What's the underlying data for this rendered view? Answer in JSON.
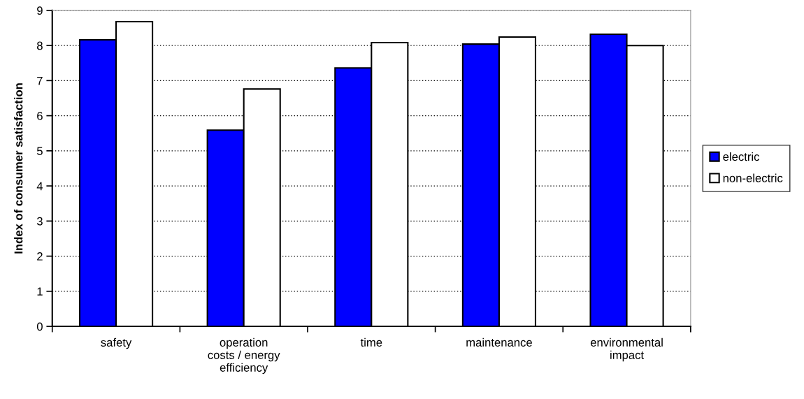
{
  "chart_data": {
    "type": "bar",
    "ylabel": "Index of consumer satisfaction",
    "categories": [
      "safety",
      "operation\ncosts / energy\nefficiency",
      "time",
      "maintenance",
      "environmental\nimpact"
    ],
    "series": [
      {
        "name": "electric",
        "color": "#0000ff",
        "values": [
          8.16,
          5.59,
          7.36,
          8.04,
          8.32
        ]
      },
      {
        "name": "non-electric",
        "color": "#ffffff",
        "values": [
          8.68,
          6.76,
          8.08,
          8.24,
          8.0
        ]
      }
    ],
    "ylim": [
      0,
      9
    ],
    "yticks": [
      0,
      1,
      2,
      3,
      4,
      5,
      6,
      7,
      8,
      9
    ],
    "grid": "y",
    "legend": "right"
  }
}
